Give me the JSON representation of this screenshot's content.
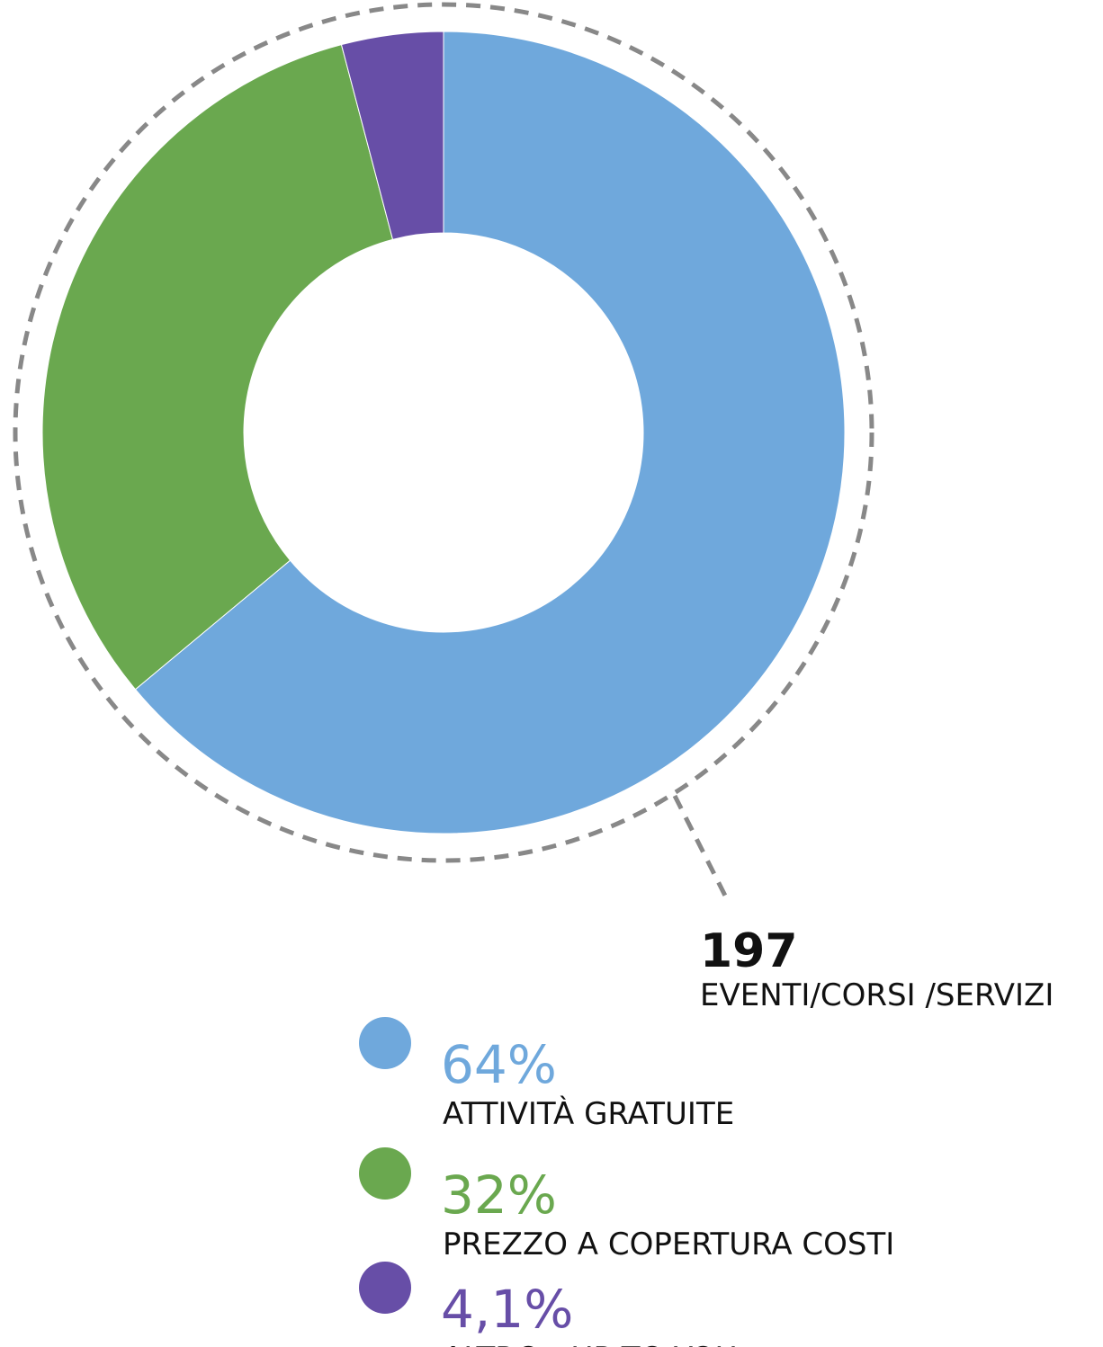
{
  "chart_data": {
    "type": "donut",
    "categories": [
      "ATTIVITÀ GRATUITE",
      "PREZZO A COPERTURA COSTI",
      "ALTRO - UP TO YOU -"
    ],
    "values": [
      64,
      32,
      4.1
    ],
    "value_labels": [
      "64%",
      "32%",
      "4,1%"
    ],
    "colors": [
      "#6fa8dc",
      "#6aa84f",
      "#674ea7"
    ],
    "total": 197,
    "total_label": "EVENTI/CORSI /SERVIZI"
  }
}
